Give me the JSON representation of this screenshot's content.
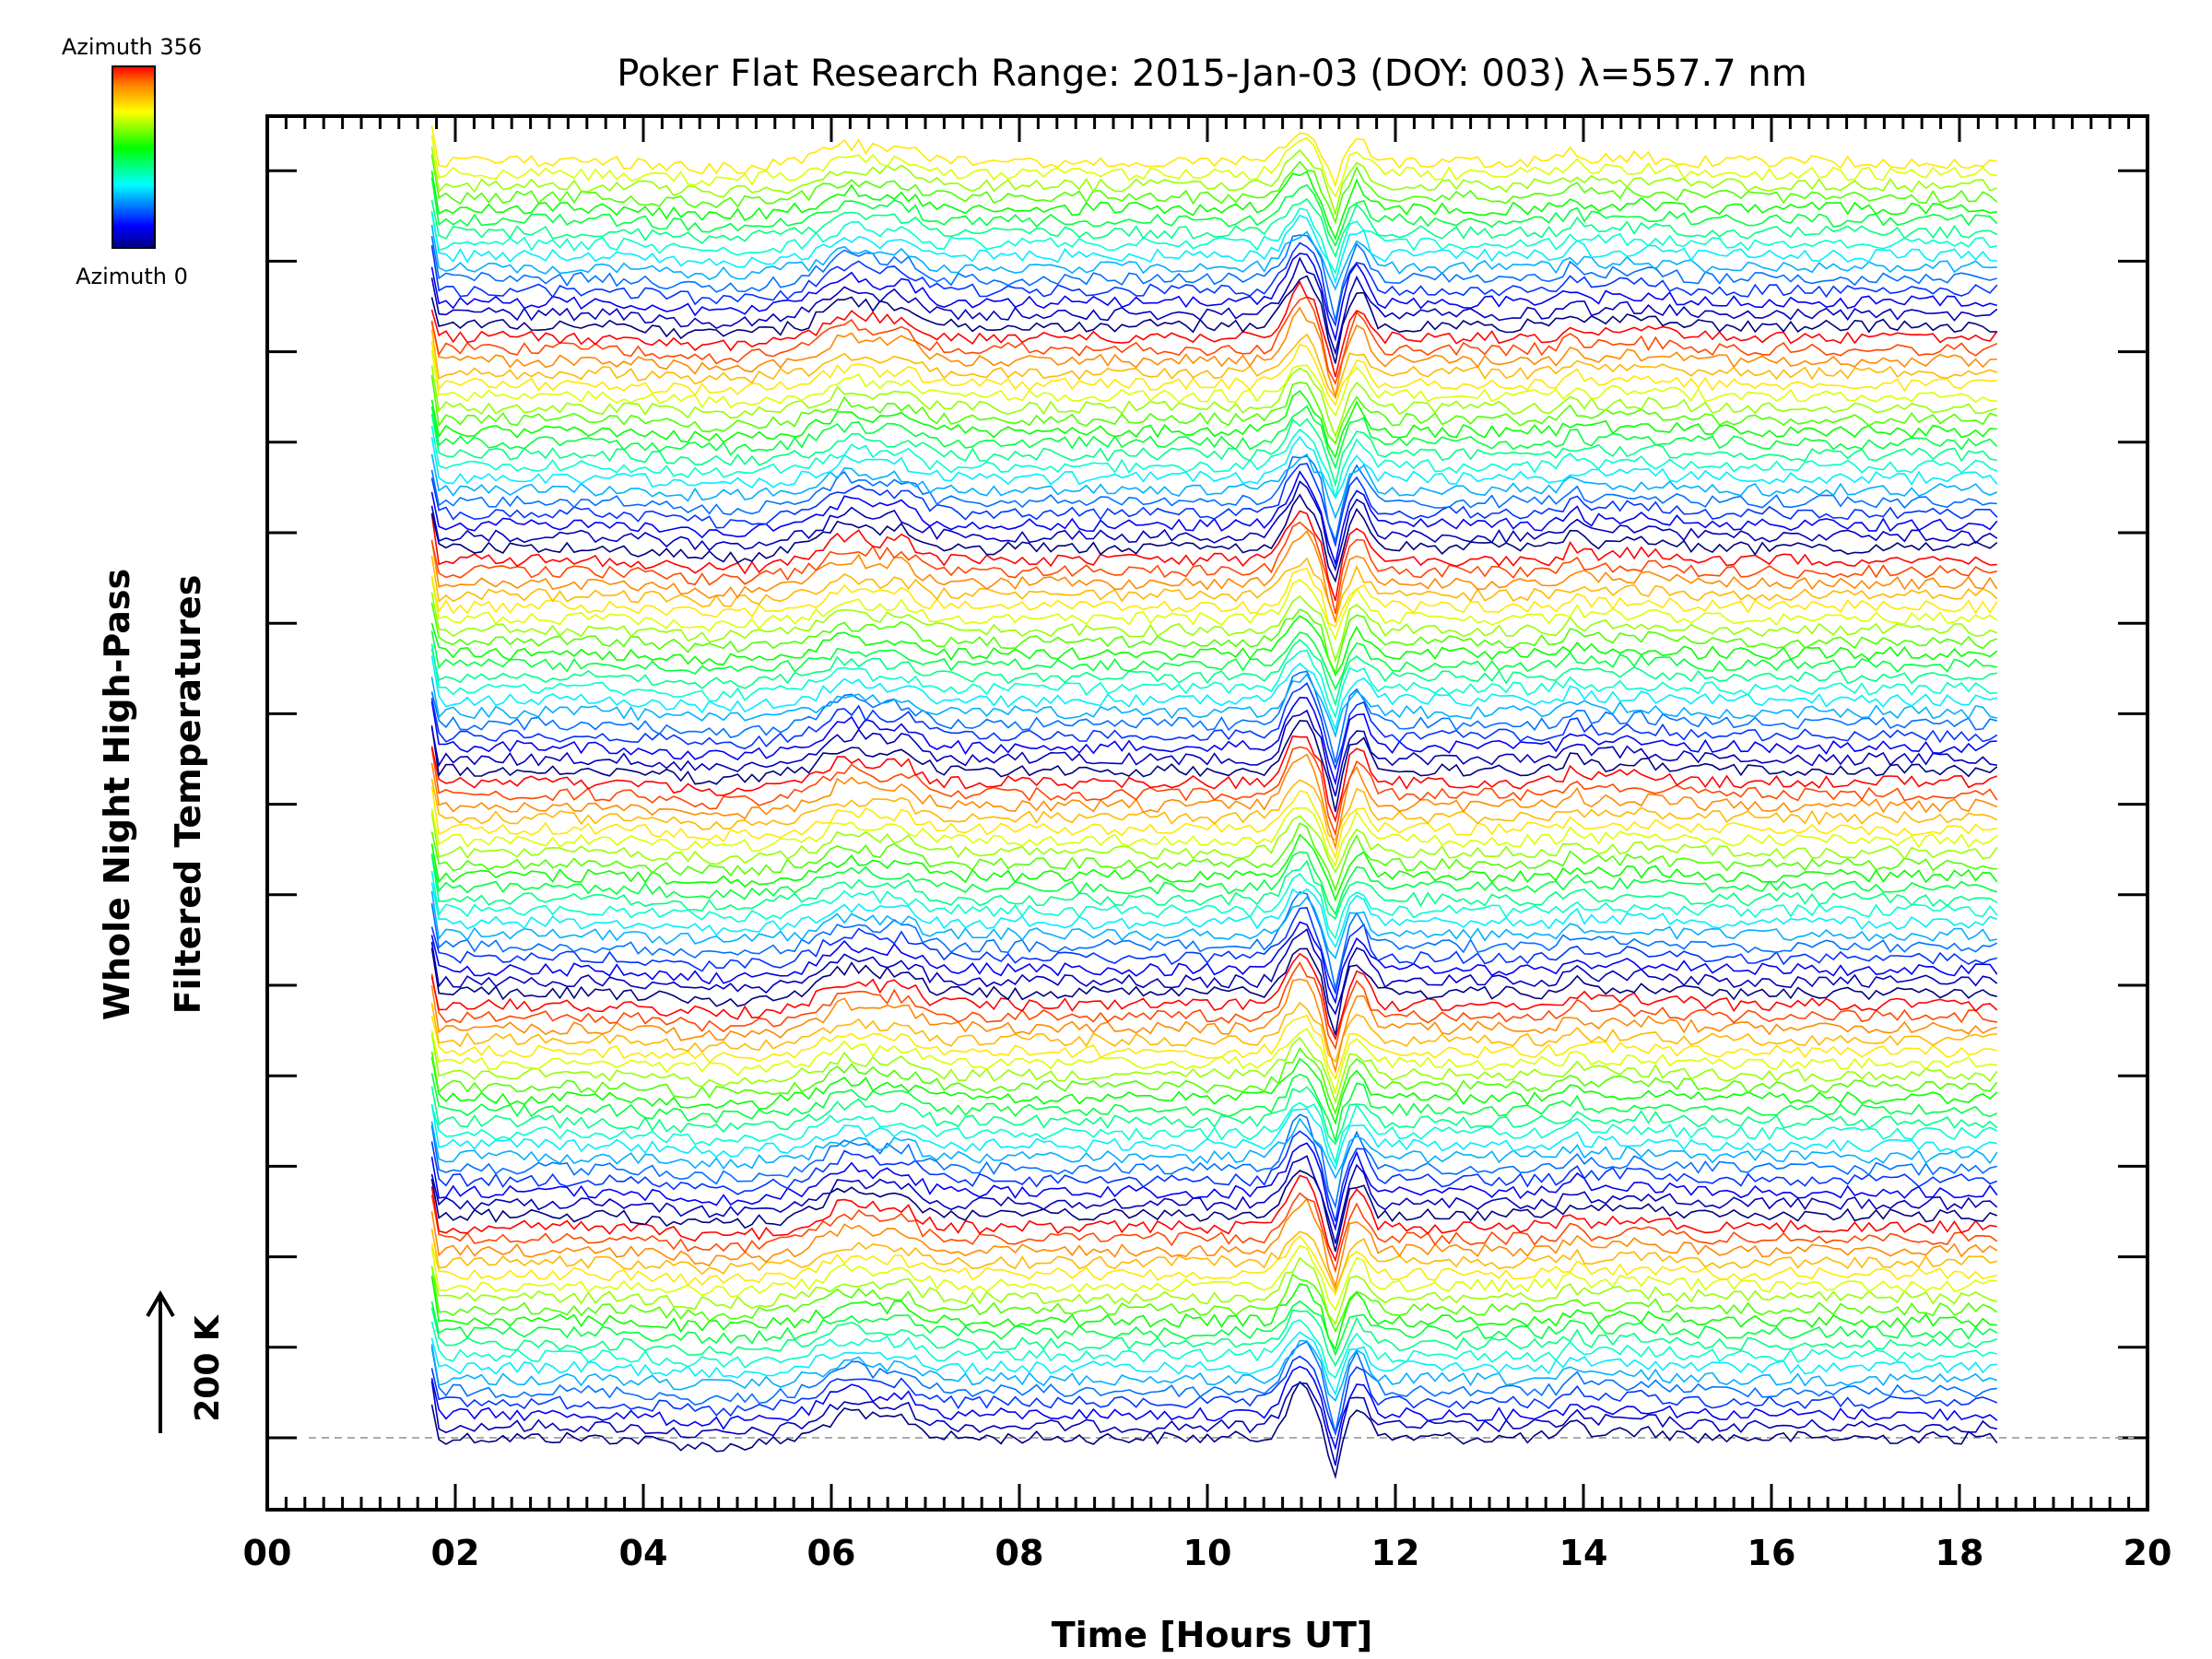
{
  "chart_data": {
    "type": "line",
    "title": "Poker Flat Research Range: 2015-Jan-03 (DOY: 003) λ=557.7 nm",
    "xlabel": "Time [Hours UT]",
    "ylabel_line1": "Whole Night High-Pass",
    "ylabel_line2": "Filtered Temperatures",
    "xlim": [
      0,
      20
    ],
    "x_tick_labels": [
      "00",
      "02",
      "04",
      "06",
      "08",
      "10",
      "12",
      "14",
      "16",
      "18",
      "20"
    ],
    "data_time_range": [
      1.75,
      18.4
    ],
    "colorbar": {
      "top_label": "Azimuth 356",
      "bottom_label": "Azimuth 0",
      "colormap": "rainbow",
      "range": [
        0,
        356
      ]
    },
    "scale_bar_label": "200 K",
    "baseline": "dashed",
    "num_traces": 110,
    "common_features_hours": [
      6.2,
      6.7,
      11.0,
      11.3,
      11.7,
      13.9
    ],
    "grid": false
  }
}
